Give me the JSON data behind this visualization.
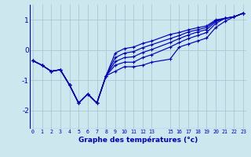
{
  "xlabel": "Graphe des températures (°c)",
  "background_color": "#cce8ee",
  "grid_color": "#aac8d4",
  "line_color": "#0000bb",
  "ylim": [
    -2.6,
    1.5
  ],
  "yticks": [
    -2,
    -1,
    0,
    1
  ],
  "xlim": [
    -0.3,
    23.3
  ],
  "x_ticks": [
    0,
    1,
    2,
    3,
    4,
    5,
    6,
    7,
    8,
    9,
    10,
    11,
    12,
    13,
    15,
    16,
    17,
    18,
    19,
    20,
    21,
    22,
    23
  ],
  "lines": [
    [
      [
        -0.35,
        -0.5,
        -0.7,
        -0.65,
        -1.15,
        -1.75,
        -1.45,
        -1.75,
        -0.85,
        -0.7,
        -0.55,
        -0.55,
        -0.5,
        -0.4,
        -0.3,
        0.1,
        0.2,
        0.3,
        0.4,
        0.75,
        0.95,
        1.1,
        1.22
      ],
      [
        -0.35,
        -0.5,
        -0.7,
        -0.65,
        -1.15,
        -1.75,
        -1.45,
        -1.75,
        -0.85,
        -0.5,
        -0.4,
        -0.4,
        -0.25,
        -0.15,
        0.1,
        0.25,
        0.38,
        0.48,
        0.58,
        0.88,
        1.05,
        1.1,
        1.22
      ],
      [
        -0.35,
        -0.5,
        -0.7,
        -0.65,
        -1.15,
        -1.75,
        -1.45,
        -1.75,
        -0.85,
        -0.38,
        -0.25,
        -0.22,
        -0.08,
        0.02,
        0.25,
        0.38,
        0.5,
        0.6,
        0.68,
        0.94,
        1.05,
        1.1,
        1.22
      ],
      [
        -0.35,
        -0.5,
        -0.7,
        -0.65,
        -1.15,
        -1.75,
        -1.45,
        -1.75,
        -0.85,
        -0.25,
        -0.1,
        -0.05,
        0.08,
        0.18,
        0.38,
        0.48,
        0.6,
        0.67,
        0.75,
        0.97,
        1.05,
        1.1,
        1.22
      ],
      [
        -0.35,
        -0.5,
        -0.7,
        -0.65,
        -1.15,
        -1.75,
        -1.45,
        -1.75,
        -0.85,
        -0.1,
        0.05,
        0.1,
        0.22,
        0.3,
        0.52,
        0.58,
        0.67,
        0.74,
        0.8,
        1.0,
        1.05,
        1.1,
        1.22
      ]
    ]
  ]
}
